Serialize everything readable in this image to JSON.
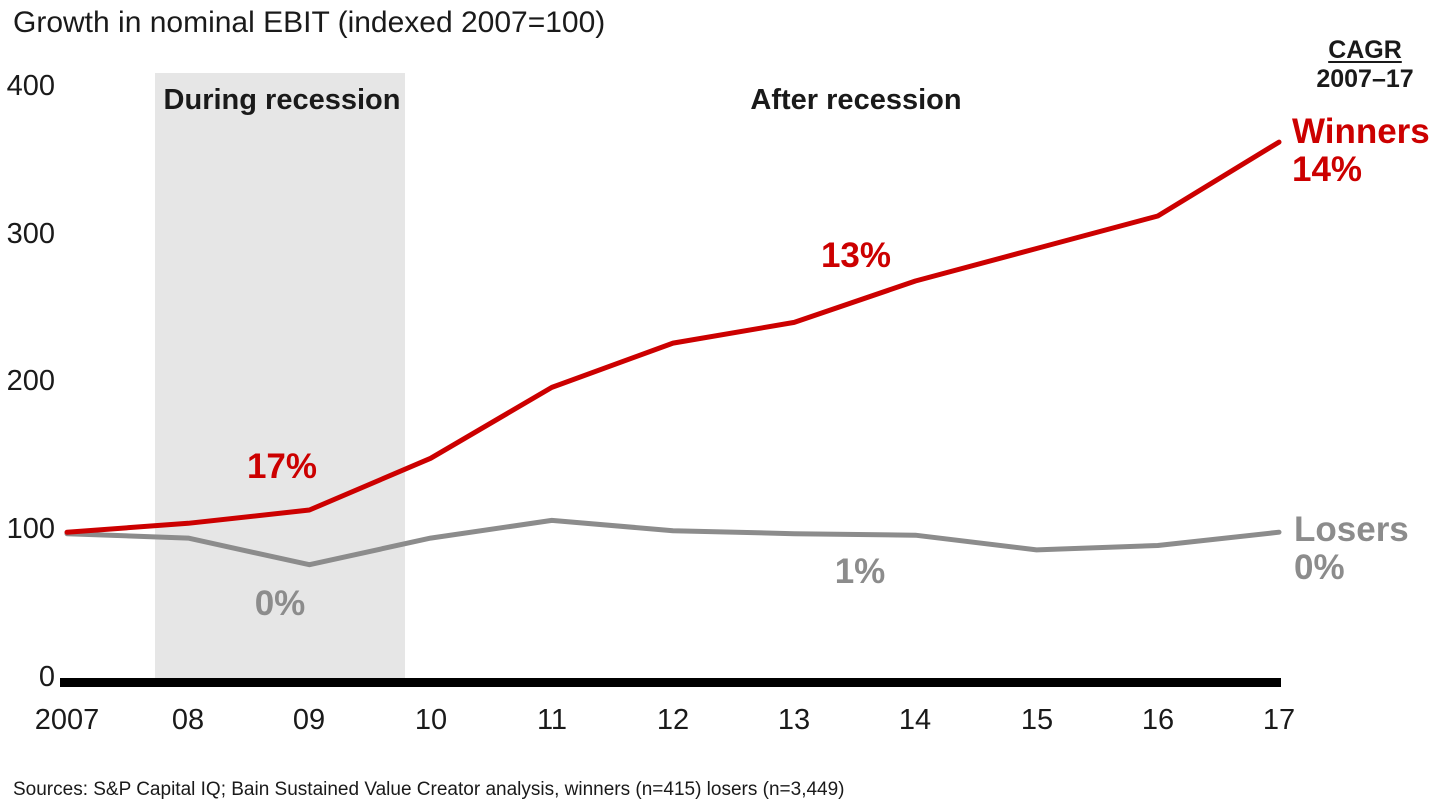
{
  "footer": "Sources: S&P Capital IQ; Bain Sustained Value Creator analysis, winners (n=415) losers (n=3,449)",
  "chart_data": {
    "type": "line",
    "title": "Growth in nominal EBIT (indexed 2007=100)",
    "index_base": "2007=100",
    "x_tick_labels": [
      "2007",
      "08",
      "09",
      "10",
      "11",
      "12",
      "13",
      "14",
      "15",
      "16",
      "17"
    ],
    "years": [
      2007,
      2008,
      2009,
      2010,
      2011,
      2012,
      2013,
      2014,
      2015,
      2016,
      2017
    ],
    "y_ticks": [
      400,
      300,
      200,
      100,
      0
    ],
    "ylim": [
      0,
      410
    ],
    "grid": false,
    "axis_color": "#000000",
    "cagr_header_label": "CAGR",
    "cagr_header_range": "2007–17",
    "recession_band": {
      "label": "During recession",
      "x_start_year": 2007.7,
      "x_end_year": 2009.8,
      "color": "#e6e6e6"
    },
    "after_recession_label": "After recession",
    "series": [
      {
        "name": "Winners",
        "color": "#cc0000",
        "cagr": "14%",
        "values": [
          98,
          104,
          113,
          148,
          196,
          226,
          240,
          268,
          290,
          312,
          362
        ],
        "annotations": [
          {
            "text": "17%",
            "near_year": 2009,
            "near_value": 142
          },
          {
            "text": "13%",
            "near_year": 2013.5,
            "near_value": 285
          }
        ]
      },
      {
        "name": "Losers",
        "color": "#8c8c8c",
        "cagr": "0%",
        "values": [
          97,
          94,
          76,
          94,
          106,
          99,
          97,
          96,
          86,
          89,
          98
        ],
        "annotations": [
          {
            "text": "0%",
            "near_year": 2009,
            "near_value": 49
          },
          {
            "text": "1%",
            "near_year": 2013.5,
            "near_value": 71
          }
        ]
      }
    ]
  }
}
